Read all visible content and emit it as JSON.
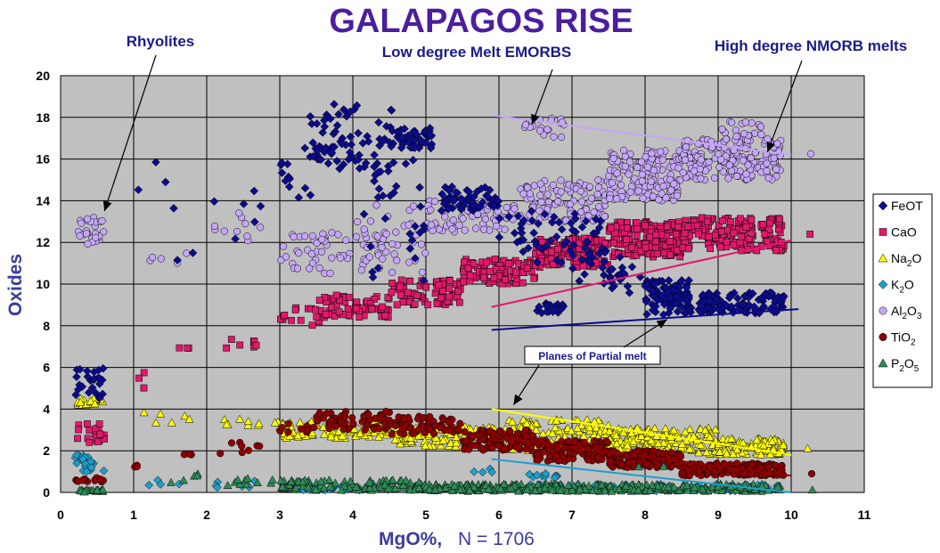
{
  "chart_data": {
    "type": "scatter",
    "title": "GALAPAGOS RISE",
    "xlabel": "MgO%,",
    "xlabel_note": "N = 1706",
    "ylabel": "Oxides",
    "xlim": [
      0,
      11
    ],
    "ylim": [
      0,
      20
    ],
    "x_ticks": [
      "0",
      "1",
      "2",
      "3",
      "4",
      "5",
      "6",
      "7",
      "8",
      "9",
      "10",
      "11"
    ],
    "y_ticks": [
      "0",
      "2",
      "4",
      "6",
      "8",
      "10",
      "12",
      "14",
      "16",
      "18",
      "20"
    ],
    "grid": true,
    "background": "#c0c0c0",
    "legend_position": "right",
    "annotations": [
      {
        "text": "Rhyolites",
        "target": [
          0.6,
          13.5
        ]
      },
      {
        "text": "Low degree Melt EMORBS",
        "target": [
          6.5,
          18.0
        ]
      },
      {
        "text": "High degree NMORB melts",
        "target": [
          9.7,
          16.5
        ]
      },
      {
        "text": "Planes of Partial melt",
        "target": [
          8.3,
          8.3
        ],
        "target2": [
          6.2,
          4.2
        ]
      }
    ],
    "series": [
      {
        "name": "FeOT",
        "sub": "",
        "marker": "diamond",
        "color": "#0b0b8c",
        "clusters": [
          {
            "x": [
              0.2,
              0.6
            ],
            "y": [
              4.5,
              6.0
            ],
            "n": 25
          },
          {
            "x": [
              1.0,
              1.9
            ],
            "y": [
              11.0,
              16.2
            ],
            "n": 6
          },
          {
            "x": [
              2.1,
              2.9
            ],
            "y": [
              11.5,
              14.5
            ],
            "n": 6
          },
          {
            "x": [
              3.0,
              3.5
            ],
            "y": [
              14.0,
              17.5
            ],
            "n": 12
          },
          {
            "x": [
              3.4,
              4.2
            ],
            "y": [
              15.5,
              18.7
            ],
            "n": 60
          },
          {
            "x": [
              4.2,
              4.6
            ],
            "y": [
              14.0,
              18.5
            ],
            "n": 30
          },
          {
            "x": [
              4.6,
              5.1
            ],
            "y": [
              16.5,
              17.5
            ],
            "n": 50
          },
          {
            "x": [
              4.0,
              5.0
            ],
            "y": [
              10.0,
              16.0
            ],
            "n": 20
          },
          {
            "x": [
              5.2,
              6.0
            ],
            "y": [
              13.5,
              14.7
            ],
            "n": 60
          },
          {
            "x": [
              6.0,
              7.5
            ],
            "y": [
              11.0,
              13.5
            ],
            "n": 60
          },
          {
            "x": [
              6.5,
              6.9
            ],
            "y": [
              8.6,
              9.1
            ],
            "n": 20
          },
          {
            "x": [
              7.0,
              8.0
            ],
            "y": [
              9.5,
              11.5
            ],
            "n": 30
          },
          {
            "x": [
              8.0,
              8.6
            ],
            "y": [
              8.5,
              10.2
            ],
            "n": 90
          },
          {
            "x": [
              8.5,
              9.9
            ],
            "y": [
              8.6,
              9.6
            ],
            "n": 120
          }
        ]
      },
      {
        "name": "CaO",
        "sub": "",
        "marker": "square",
        "color": "#e2186b",
        "clusters": [
          {
            "x": [
              0.2,
              0.6
            ],
            "y": [
              2.4,
              3.4
            ],
            "n": 20
          },
          {
            "x": [
              1.0,
              1.2
            ],
            "y": [
              5.0,
              6.0
            ],
            "n": 3
          },
          {
            "x": [
              1.6,
              1.8
            ],
            "y": [
              6.8,
              7.0
            ],
            "n": 3
          },
          {
            "x": [
              2.1,
              2.8
            ],
            "y": [
              6.8,
              7.4
            ],
            "n": 7
          },
          {
            "x": [
              3.0,
              3.6
            ],
            "y": [
              8.0,
              9.0
            ],
            "n": 15
          },
          {
            "x": [
              3.5,
              4.5
            ],
            "y": [
              8.4,
              9.5
            ],
            "n": 70
          },
          {
            "x": [
              4.5,
              5.5
            ],
            "y": [
              9.0,
              10.2
            ],
            "n": 70
          },
          {
            "x": [
              5.5,
              6.5
            ],
            "y": [
              10.0,
              11.2
            ],
            "n": 100
          },
          {
            "x": [
              6.5,
              7.5
            ],
            "y": [
              10.8,
              12.2
            ],
            "n": 140
          },
          {
            "x": [
              7.5,
              8.5
            ],
            "y": [
              11.3,
              13.0
            ],
            "n": 170
          },
          {
            "x": [
              8.5,
              9.9
            ],
            "y": [
              11.6,
              13.2
            ],
            "n": 170
          },
          {
            "x": [
              10.2,
              10.3
            ],
            "y": [
              12.2,
              12.4
            ],
            "n": 1
          }
        ]
      },
      {
        "name": "Na",
        "sub": "2",
        "suffix": "O",
        "marker": "triangle",
        "color": "#ffff00",
        "clusters": [
          {
            "x": [
              0.2,
              0.6
            ],
            "y": [
              4.0,
              4.5
            ],
            "n": 20
          },
          {
            "x": [
              1.0,
              1.9
            ],
            "y": [
              3.3,
              3.9
            ],
            "n": 6
          },
          {
            "x": [
              2.1,
              3.0
            ],
            "y": [
              3.2,
              3.6
            ],
            "n": 10
          },
          {
            "x": [
              3.0,
              4.5
            ],
            "y": [
              2.6,
              3.4
            ],
            "n": 80
          },
          {
            "x": [
              4.5,
              6.0
            ],
            "y": [
              2.2,
              3.2
            ],
            "n": 100
          },
          {
            "x": [
              6.0,
              7.5
            ],
            "y": [
              2.0,
              3.5
            ],
            "n": 120
          },
          {
            "x": [
              7.5,
              9.0
            ],
            "y": [
              1.8,
              3.1
            ],
            "n": 170
          },
          {
            "x": [
              9.0,
              9.9
            ],
            "y": [
              1.8,
              2.6
            ],
            "n": 100
          },
          {
            "x": [
              10.2,
              10.3
            ],
            "y": [
              2.1,
              2.3
            ],
            "n": 1
          }
        ]
      },
      {
        "name": "K",
        "sub": "2",
        "suffix": "O",
        "marker": "diamond",
        "color": "#1e9ecc",
        "clusters": [
          {
            "x": [
              0.2,
              0.6
            ],
            "y": [
              1.0,
              1.8
            ],
            "n": 25
          },
          {
            "x": [
              1.0,
              1.9
            ],
            "y": [
              0.3,
              0.6
            ],
            "n": 4
          },
          {
            "x": [
              2.1,
              2.8
            ],
            "y": [
              0.2,
              0.6
            ],
            "n": 6
          },
          {
            "x": [
              3.3,
              4.5
            ],
            "y": [
              0.1,
              0.3
            ],
            "n": 40
          },
          {
            "x": [
              5.5,
              6.0
            ],
            "y": [
              0.9,
              1.2
            ],
            "n": 4
          },
          {
            "x": [
              6.4,
              6.8
            ],
            "y": [
              0.6,
              1.0
            ],
            "n": 10
          },
          {
            "x": [
              6.0,
              9.9
            ],
            "y": [
              0.05,
              0.4
            ],
            "n": 80
          }
        ]
      },
      {
        "name": "Al",
        "sub": "2",
        "suffix": "O",
        "sub2": "3",
        "marker": "circle",
        "color": "#c4a6f5",
        "clusters": [
          {
            "x": [
              0.2,
              0.6
            ],
            "y": [
              11.9,
              13.2
            ],
            "n": 30
          },
          {
            "x": [
              1.0,
              1.9
            ],
            "y": [
              11.0,
              12.0
            ],
            "n": 5
          },
          {
            "x": [
              2.1,
              2.8
            ],
            "y": [
              11.5,
              13.5
            ],
            "n": 10
          },
          {
            "x": [
              3.0,
              5.0
            ],
            "y": [
              10.5,
              12.5
            ],
            "n": 80
          },
          {
            "x": [
              4.0,
              5.0
            ],
            "y": [
              12.5,
              14.0
            ],
            "n": 10
          },
          {
            "x": [
              5.0,
              6.2
            ],
            "y": [
              12.5,
              14.0
            ],
            "n": 70
          },
          {
            "x": [
              6.2,
              7.5
            ],
            "y": [
              13.0,
              15.0
            ],
            "n": 100
          },
          {
            "x": [
              6.3,
              6.9
            ],
            "y": [
              17.0,
              18.0
            ],
            "n": 20
          },
          {
            "x": [
              7.5,
              8.5
            ],
            "y": [
              14.0,
              16.5
            ],
            "n": 150
          },
          {
            "x": [
              8.5,
              9.9
            ],
            "y": [
              15.0,
              17.0
            ],
            "n": 170
          },
          {
            "x": [
              9.0,
              9.6
            ],
            "y": [
              16.8,
              17.8
            ],
            "n": 25
          },
          {
            "x": [
              10.2,
              10.3
            ],
            "y": [
              16.2,
              16.3
            ],
            "n": 1
          }
        ]
      },
      {
        "name": "TiO",
        "sub": "2",
        "suffix": "",
        "marker": "circle",
        "color": "#8b0000",
        "clusters": [
          {
            "x": [
              0.2,
              0.6
            ],
            "y": [
              0.5,
              0.7
            ],
            "n": 15
          },
          {
            "x": [
              1.0,
              1.2
            ],
            "y": [
              1.2,
              1.4
            ],
            "n": 3
          },
          {
            "x": [
              1.6,
              1.8
            ],
            "y": [
              1.8,
              1.9
            ],
            "n": 3
          },
          {
            "x": [
              2.1,
              2.8
            ],
            "y": [
              1.8,
              2.4
            ],
            "n": 8
          },
          {
            "x": [
              3.0,
              3.5
            ],
            "y": [
              2.8,
              3.5
            ],
            "n": 10
          },
          {
            "x": [
              3.5,
              4.5
            ],
            "y": [
              3.0,
              3.9
            ],
            "n": 60
          },
          {
            "x": [
              4.5,
              5.5
            ],
            "y": [
              2.8,
              3.7
            ],
            "n": 60
          },
          {
            "x": [
              5.5,
              6.5
            ],
            "y": [
              2.0,
              3.0
            ],
            "n": 100
          },
          {
            "x": [
              6.5,
              7.5
            ],
            "y": [
              1.5,
              2.5
            ],
            "n": 120
          },
          {
            "x": [
              7.5,
              8.5
            ],
            "y": [
              1.2,
              2.0
            ],
            "n": 150
          },
          {
            "x": [
              8.5,
              9.9
            ],
            "y": [
              0.8,
              1.4
            ],
            "n": 150
          },
          {
            "x": [
              10.2,
              10.3
            ],
            "y": [
              0.8,
              0.9
            ],
            "n": 1
          }
        ]
      },
      {
        "name": "P",
        "sub": "2",
        "suffix": "O",
        "sub2": "5",
        "marker": "triangle",
        "color": "#2e8b57",
        "clusters": [
          {
            "x": [
              0.2,
              0.6
            ],
            "y": [
              0.02,
              0.15
            ],
            "n": 20
          },
          {
            "x": [
              1.0,
              1.9
            ],
            "y": [
              0.3,
              0.9
            ],
            "n": 5
          },
          {
            "x": [
              2.1,
              3.0
            ],
            "y": [
              0.3,
              0.7
            ],
            "n": 10
          },
          {
            "x": [
              3.0,
              5.0
            ],
            "y": [
              0.1,
              0.6
            ],
            "n": 100
          },
          {
            "x": [
              5.0,
              9.9
            ],
            "y": [
              0.05,
              0.4
            ],
            "n": 300
          },
          {
            "x": [
              7.9,
              8.3
            ],
            "y": [
              1.2,
              1.4
            ],
            "n": 3
          },
          {
            "x": [
              10.2,
              10.3
            ],
            "y": [
              0.1,
              0.15
            ],
            "n": 1
          }
        ]
      }
    ],
    "trend_lines": [
      {
        "series": "FeOT",
        "color": "#0b0b8c",
        "x": [
          5.9,
          10.1
        ],
        "y": [
          7.8,
          8.8
        ]
      },
      {
        "series": "CaO",
        "color": "#e2186b",
        "x": [
          5.9,
          10.0
        ],
        "y": [
          8.9,
          12.1
        ]
      },
      {
        "series": "Al2O3",
        "color": "#c4a6f5",
        "x": [
          5.9,
          10.0
        ],
        "y": [
          18.1,
          16.2
        ]
      },
      {
        "series": "Na2O",
        "color": "#ffff00",
        "x": [
          5.9,
          10.0
        ],
        "y": [
          4.0,
          1.8
        ]
      },
      {
        "series": "TiO2",
        "color": "#8b0000",
        "x": [
          5.9,
          10.0
        ],
        "y": [
          2.7,
          0.8
        ]
      },
      {
        "series": "K2O",
        "color": "#1e9ecc",
        "x": [
          5.9,
          10.0
        ],
        "y": [
          1.6,
          0.0
        ]
      }
    ]
  }
}
